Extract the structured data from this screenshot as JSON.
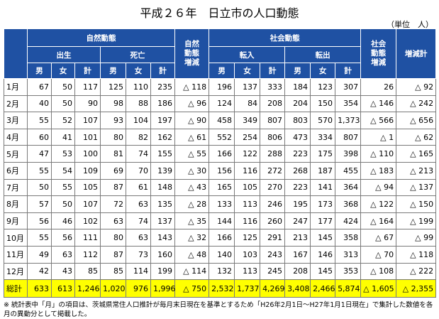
{
  "title": "平成２６年　日立市の人口動態",
  "unit": "（単位　人）",
  "table": {
    "headers": {
      "natural": "自然動態",
      "social": "社会動態",
      "births": "出生",
      "deaths": "死亡",
      "moved_in": "転入",
      "moved_out": "転出",
      "male": "男",
      "female": "女",
      "subtotal": "計",
      "natural_change": "自然動態増減",
      "social_change": "社会動態増減",
      "total_change": "増減計"
    },
    "rows": [
      [
        "1月",
        "67",
        "50",
        "117",
        "125",
        "110",
        "235",
        "△ 118",
        "196",
        "137",
        "333",
        "184",
        "123",
        "307",
        "26",
        "△ 92"
      ],
      [
        "2月",
        "40",
        "50",
        "90",
        "98",
        "88",
        "186",
        "△ 96",
        "124",
        "84",
        "208",
        "204",
        "150",
        "354",
        "△ 146",
        "△ 242"
      ],
      [
        "3月",
        "55",
        "52",
        "107",
        "93",
        "104",
        "197",
        "△ 90",
        "458",
        "349",
        "807",
        "803",
        "570",
        "1,373",
        "△ 566",
        "△ 656"
      ],
      [
        "4月",
        "60",
        "41",
        "101",
        "80",
        "82",
        "162",
        "△ 61",
        "552",
        "254",
        "806",
        "473",
        "334",
        "807",
        "△ 1",
        "△ 62"
      ],
      [
        "5月",
        "47",
        "53",
        "100",
        "81",
        "74",
        "155",
        "△ 55",
        "166",
        "122",
        "288",
        "223",
        "175",
        "398",
        "△ 110",
        "△ 165"
      ],
      [
        "6月",
        "55",
        "54",
        "109",
        "69",
        "70",
        "139",
        "△ 30",
        "156",
        "116",
        "272",
        "268",
        "187",
        "455",
        "△ 183",
        "△ 213"
      ],
      [
        "7月",
        "50",
        "55",
        "105",
        "87",
        "61",
        "148",
        "△ 43",
        "165",
        "105",
        "270",
        "223",
        "141",
        "364",
        "△ 94",
        "△ 137"
      ],
      [
        "8月",
        "57",
        "50",
        "107",
        "72",
        "63",
        "135",
        "△ 28",
        "133",
        "113",
        "246",
        "195",
        "173",
        "368",
        "△ 122",
        "△ 150"
      ],
      [
        "9月",
        "56",
        "46",
        "102",
        "63",
        "74",
        "137",
        "△ 35",
        "144",
        "116",
        "260",
        "247",
        "177",
        "424",
        "△ 164",
        "△ 199"
      ],
      [
        "10月",
        "55",
        "56",
        "111",
        "80",
        "63",
        "143",
        "△ 32",
        "166",
        "125",
        "291",
        "213",
        "145",
        "358",
        "△ 67",
        "△ 99"
      ],
      [
        "11月",
        "49",
        "63",
        "112",
        "87",
        "73",
        "160",
        "△ 48",
        "140",
        "103",
        "243",
        "167",
        "146",
        "313",
        "△ 70",
        "△ 118"
      ],
      [
        "12月",
        "42",
        "43",
        "85",
        "85",
        "114",
        "199",
        "△ 114",
        "132",
        "113",
        "245",
        "208",
        "145",
        "353",
        "△ 108",
        "△ 222"
      ]
    ],
    "total": [
      "総計",
      "633",
      "613",
      "1,246",
      "1,020",
      "976",
      "1,996",
      "△ 750",
      "2,532",
      "1,737",
      "4,269",
      "3,408",
      "2,466",
      "5,874",
      "△ 1,605",
      "△ 2,355"
    ]
  },
  "note": "※ 統計表中「月」の項目は、茨城県常住人口推計が毎月末日現在を基準とするため「H26年2月1日～H27年1月1日現在」で集計した数値を各月の異動分として掲載した。"
}
